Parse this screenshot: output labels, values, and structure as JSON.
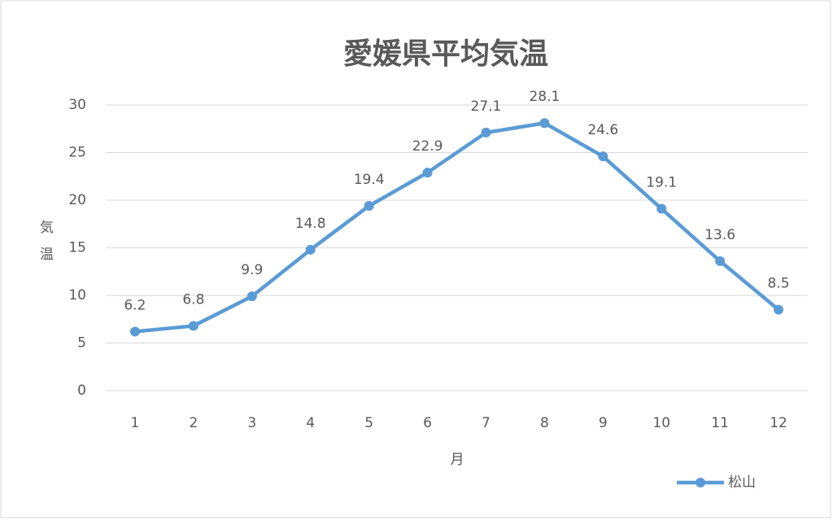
{
  "chart_data": {
    "type": "line",
    "title": "愛媛県平均気温",
    "x_label": "月",
    "y_label": "気温",
    "categories": [
      "1",
      "2",
      "3",
      "4",
      "5",
      "6",
      "7",
      "8",
      "9",
      "10",
      "11",
      "12"
    ],
    "series": [
      {
        "name": "松山",
        "color": "#5b9bd5",
        "values": [
          6.2,
          6.8,
          9.9,
          14.8,
          19.4,
          22.9,
          27.1,
          28.1,
          24.6,
          19.1,
          13.6,
          8.5
        ]
      }
    ],
    "ylim": [
      0,
      30
    ],
    "yticks": [
      0,
      5,
      10,
      15,
      20,
      25,
      30
    ],
    "grid": true,
    "legend": "bottom-right",
    "data_labels": true
  }
}
